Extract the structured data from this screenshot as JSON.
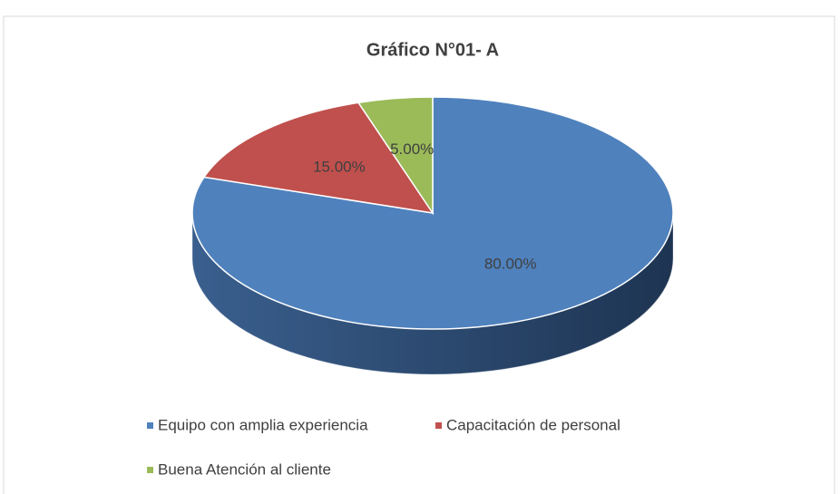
{
  "chart_data": {
    "type": "pie",
    "title": "Gráfico N°01- A",
    "categories": [
      "Equipo con amplia experiencia",
      "Capacitación de personal",
      "Buena Atención al cliente"
    ],
    "values": [
      80,
      15,
      5
    ],
    "value_labels": [
      "80.00%",
      "15.00%",
      "5.00%"
    ],
    "colors": [
      "#4f81bd",
      "#c0504d",
      "#9bbb59"
    ],
    "legend": "bottom"
  }
}
